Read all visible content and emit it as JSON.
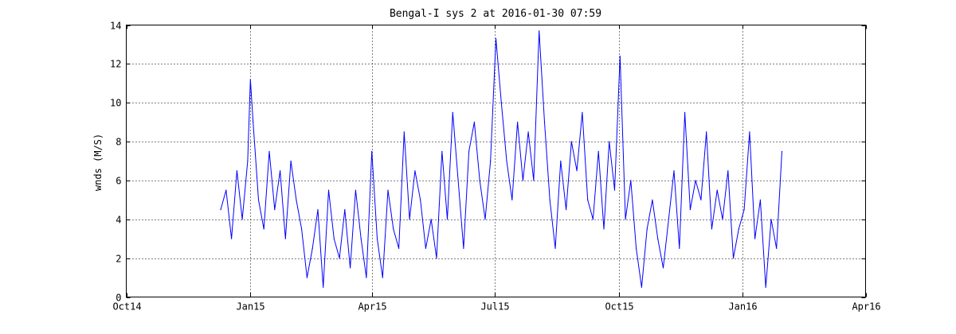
{
  "chart_data": {
    "type": "line",
    "title": "Bengal-I sys 2 at 2016-01-30 07:59",
    "xlabel": "",
    "ylabel": "wnds (M/S)",
    "xlim": [
      "2014-10-01",
      "2016-04-01"
    ],
    "ylim": [
      0,
      14
    ],
    "grid": true,
    "x_tick_labels": [
      "Oct14",
      "Jan15",
      "Apr15",
      "Jul15",
      "Oct15",
      "Jan16",
      "Apr16"
    ],
    "x_tick_dates": [
      "2014-10-01",
      "2015-01-01",
      "2015-04-01",
      "2015-07-01",
      "2015-10-01",
      "2016-01-01",
      "2016-04-01"
    ],
    "y_ticks": [
      0,
      2,
      4,
      6,
      8,
      10,
      12,
      14
    ],
    "series": [
      {
        "color": "#0000ff",
        "x": [
          "2014-12-10",
          "2014-12-14",
          "2014-12-18",
          "2014-12-22",
          "2014-12-26",
          "2014-12-30",
          "2015-01-01",
          "2015-01-03",
          "2015-01-07",
          "2015-01-11",
          "2015-01-15",
          "2015-01-19",
          "2015-01-23",
          "2015-01-27",
          "2015-01-31",
          "2015-02-04",
          "2015-02-08",
          "2015-02-12",
          "2015-02-16",
          "2015-02-20",
          "2015-02-24",
          "2015-02-28",
          "2015-03-04",
          "2015-03-08",
          "2015-03-12",
          "2015-03-16",
          "2015-03-20",
          "2015-03-24",
          "2015-03-28",
          "2015-04-01",
          "2015-04-05",
          "2015-04-09",
          "2015-04-13",
          "2015-04-17",
          "2015-04-21",
          "2015-04-25",
          "2015-04-29",
          "2015-05-03",
          "2015-05-07",
          "2015-05-11",
          "2015-05-15",
          "2015-05-19",
          "2015-05-23",
          "2015-05-27",
          "2015-05-31",
          "2015-06-04",
          "2015-06-08",
          "2015-06-12",
          "2015-06-16",
          "2015-06-20",
          "2015-06-24",
          "2015-06-28",
          "2015-07-02",
          "2015-07-06",
          "2015-07-10",
          "2015-07-14",
          "2015-07-18",
          "2015-07-22",
          "2015-07-26",
          "2015-07-30",
          "2015-08-03",
          "2015-08-07",
          "2015-08-11",
          "2015-08-15",
          "2015-08-19",
          "2015-08-23",
          "2015-08-27",
          "2015-08-31",
          "2015-09-04",
          "2015-09-08",
          "2015-09-12",
          "2015-09-16",
          "2015-09-20",
          "2015-09-24",
          "2015-09-28",
          "2015-10-02",
          "2015-10-06",
          "2015-10-10",
          "2015-10-14",
          "2015-10-18",
          "2015-10-22",
          "2015-10-26",
          "2015-10-30",
          "2015-11-03",
          "2015-11-07",
          "2015-11-11",
          "2015-11-15",
          "2015-11-19",
          "2015-11-23",
          "2015-11-27",
          "2015-12-01",
          "2015-12-05",
          "2015-12-09",
          "2015-12-13",
          "2015-12-17",
          "2015-12-21",
          "2015-12-25",
          "2015-12-29",
          "2016-01-02",
          "2016-01-06",
          "2016-01-10",
          "2016-01-14",
          "2016-01-18",
          "2016-01-22",
          "2016-01-26",
          "2016-01-30"
        ],
        "y": [
          4.5,
          5.5,
          3.0,
          6.5,
          4.0,
          7.0,
          11.2,
          9.0,
          5.0,
          3.5,
          7.5,
          4.5,
          6.5,
          3.0,
          7.0,
          5.0,
          3.5,
          1.0,
          2.5,
          4.5,
          0.5,
          5.5,
          3.0,
          2.0,
          4.5,
          1.5,
          5.5,
          3.0,
          1.0,
          7.5,
          3.0,
          1.0,
          5.5,
          3.5,
          2.5,
          8.5,
          4.0,
          6.5,
          5.0,
          2.5,
          4.0,
          2.0,
          7.5,
          4.0,
          9.5,
          6.0,
          2.5,
          7.5,
          9.0,
          6.0,
          4.0,
          7.0,
          13.3,
          10.0,
          7.0,
          5.0,
          9.0,
          6.0,
          8.5,
          6.0,
          13.7,
          9.0,
          5.0,
          2.5,
          7.0,
          4.5,
          8.0,
          6.5,
          9.5,
          5.0,
          4.0,
          7.5,
          3.5,
          8.0,
          5.5,
          12.4,
          4.0,
          6.0,
          2.5,
          0.5,
          3.5,
          5.0,
          3.0,
          1.5,
          4.0,
          6.5,
          2.5,
          9.5,
          4.5,
          6.0,
          5.0,
          8.5,
          3.5,
          5.5,
          4.0,
          6.5,
          2.0,
          3.5,
          4.5,
          8.5,
          3.0,
          5.0,
          0.5,
          4.0,
          2.5,
          7.5
        ]
      }
    ]
  }
}
